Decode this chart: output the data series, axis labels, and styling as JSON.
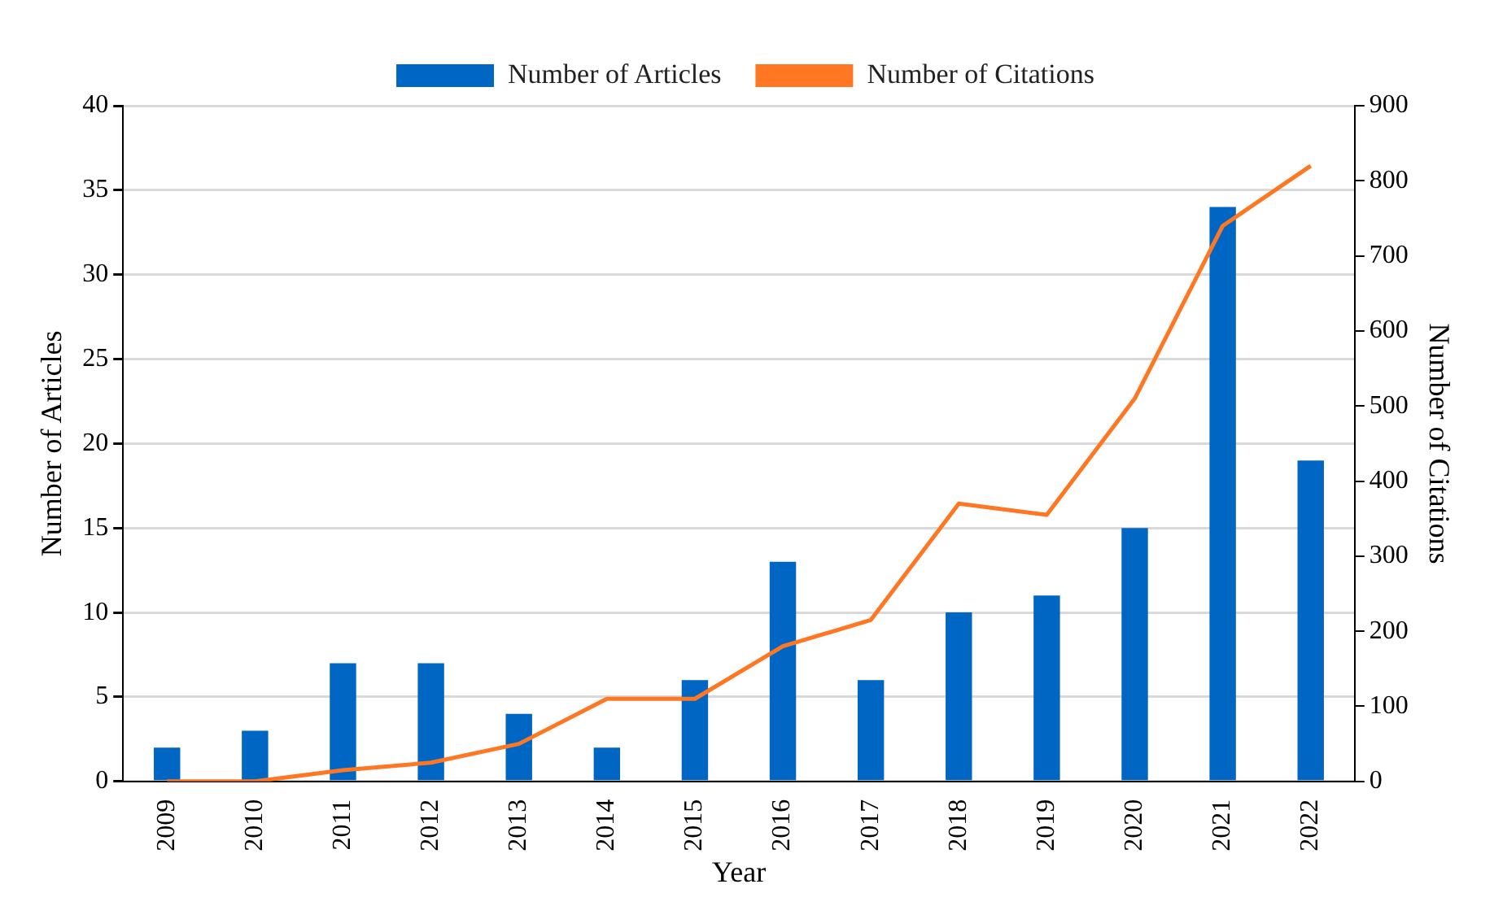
{
  "chart_data": {
    "type": "bar",
    "xlabel": "Year",
    "ylabel": "Number of Articles",
    "y2label": "Number of Citations",
    "categories": [
      "2009",
      "2010",
      "2011",
      "2012",
      "2013",
      "2014",
      "2015",
      "2016",
      "2017",
      "2018",
      "2019",
      "2020",
      "2021",
      "2022"
    ],
    "series": [
      {
        "name": "Number of Articles",
        "color": "#0066c4",
        "values": [
          2,
          3,
          7,
          7,
          4,
          2,
          6,
          13,
          6,
          10,
          11,
          15,
          34,
          19
        ]
      },
      {
        "name": "Number of Citations",
        "type": "line",
        "axis": "y2",
        "color": "#ff7722",
        "values": [
          0,
          0,
          15,
          25,
          50,
          110,
          110,
          180,
          215,
          370,
          355,
          510,
          740,
          820
        ]
      }
    ],
    "ylim": [
      0,
      40
    ],
    "yticks": [
      0,
      5,
      10,
      15,
      20,
      25,
      30,
      35,
      40
    ],
    "y2lim": [
      0,
      900
    ],
    "y2ticks": [
      0,
      100,
      200,
      300,
      400,
      500,
      600,
      700,
      800,
      900
    ],
    "grid": "y",
    "legend": "top",
    "marker": "none"
  }
}
